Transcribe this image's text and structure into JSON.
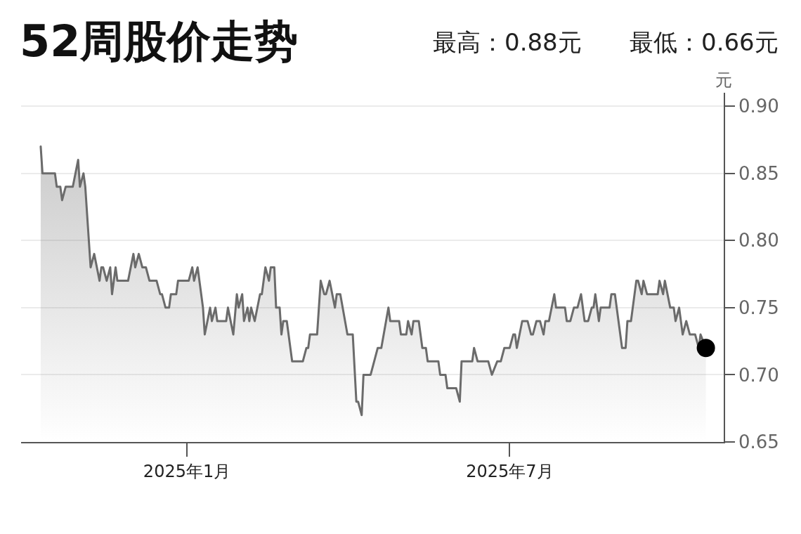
{
  "chart_data": {
    "type": "area",
    "title": "52周股价走势",
    "ylabel": "元",
    "annotations": [
      "最高：0.88元",
      "最低：0.66元"
    ],
    "x": [
      "2024-10-11",
      "2024-10-12",
      "2024-10-19",
      "2024-10-20",
      "2024-10-22",
      "2024-10-23",
      "2024-10-25",
      "2024-10-29",
      "2024-11-01",
      "2024-11-02",
      "2024-11-04",
      "2024-11-05",
      "2024-11-08",
      "2024-11-10",
      "2024-11-13",
      "2024-11-14",
      "2024-11-15",
      "2024-11-17",
      "2024-11-19",
      "2024-11-20",
      "2024-11-22",
      "2024-11-23",
      "2024-11-29",
      "2024-12-02",
      "2024-12-03",
      "2024-12-05",
      "2024-12-07",
      "2024-12-09",
      "2024-12-11",
      "2024-12-15",
      "2024-12-17",
      "2024-12-18",
      "2024-12-20",
      "2024-12-22",
      "2024-12-23",
      "2024-12-26",
      "2024-12-27",
      "2025-01-02",
      "2025-01-04",
      "2025-01-05",
      "2025-01-07",
      "2025-01-09",
      "2025-01-10",
      "2025-01-11",
      "2025-01-14",
      "2025-01-15",
      "2025-01-17",
      "2025-01-18",
      "2025-01-23",
      "2025-01-24",
      "2025-01-27",
      "2025-01-29",
      "2025-01-30",
      "2025-02-01",
      "2025-02-02",
      "2025-02-04",
      "2025-02-05",
      "2025-02-06",
      "2025-02-08",
      "2025-02-11",
      "2025-02-12",
      "2025-02-14",
      "2025-02-16",
      "2025-02-17",
      "2025-02-19",
      "2025-02-20",
      "2025-02-22",
      "2025-02-23",
      "2025-02-24",
      "2025-02-26",
      "2025-03-01",
      "2025-03-07",
      "2025-03-09",
      "2025-03-10",
      "2025-03-11",
      "2025-03-15",
      "2025-03-17",
      "2025-03-19",
      "2025-03-20",
      "2025-03-22",
      "2025-03-25",
      "2025-03-26",
      "2025-03-28",
      "2025-04-01",
      "2025-04-04",
      "2025-04-06",
      "2025-04-07",
      "2025-04-09",
      "2025-04-10",
      "2025-04-14",
      "2025-04-18",
      "2025-04-20",
      "2025-04-24",
      "2025-04-25",
      "2025-04-30",
      "2025-05-01",
      "2025-05-04",
      "2025-05-05",
      "2025-05-07",
      "2025-05-08",
      "2025-05-11",
      "2025-05-13",
      "2025-05-15",
      "2025-05-16",
      "2025-05-22",
      "2025-05-23",
      "2025-05-26",
      "2025-05-27",
      "2025-06-01",
      "2025-06-03",
      "2025-06-04",
      "2025-06-10",
      "2025-06-11",
      "2025-06-13",
      "2025-06-19",
      "2025-06-21",
      "2025-06-24",
      "2025-06-26",
      "2025-06-28",
      "2025-07-01",
      "2025-07-03",
      "2025-07-04",
      "2025-07-05",
      "2025-07-08",
      "2025-07-11",
      "2025-07-13",
      "2025-07-14",
      "2025-07-16",
      "2025-07-18",
      "2025-07-20",
      "2025-07-21",
      "2025-07-23",
      "2025-07-26",
      "2025-07-27",
      "2025-08-01",
      "2025-08-02",
      "2025-08-04",
      "2025-08-06",
      "2025-08-08",
      "2025-08-10",
      "2025-08-12",
      "2025-08-14",
      "2025-08-16",
      "2025-08-17",
      "2025-08-18",
      "2025-08-20",
      "2025-08-21",
      "2025-08-26",
      "2025-08-27",
      "2025-08-29",
      "2025-08-31",
      "2025-09-02",
      "2025-09-04",
      "2025-09-05",
      "2025-09-07",
      "2025-09-10",
      "2025-09-11",
      "2025-09-13",
      "2025-09-14",
      "2025-09-16",
      "2025-09-22",
      "2025-09-23",
      "2025-09-25",
      "2025-09-26",
      "2025-09-29",
      "2025-10-01",
      "2025-10-02",
      "2025-10-04",
      "2025-10-06",
      "2025-10-08",
      "2025-10-10",
      "2025-10-13",
      "2025-10-15",
      "2025-10-16",
      "2025-10-19"
    ],
    "series": [
      {
        "color": "#6b6b6b",
        "values": [
          0.87,
          0.85,
          0.85,
          0.84,
          0.84,
          0.83,
          0.84,
          0.84,
          0.86,
          0.84,
          0.85,
          0.84,
          0.78,
          0.79,
          0.77,
          0.78,
          0.78,
          0.77,
          0.78,
          0.76,
          0.78,
          0.77,
          0.77,
          0.79,
          0.78,
          0.79,
          0.78,
          0.78,
          0.77,
          0.77,
          0.76,
          0.76,
          0.75,
          0.75,
          0.76,
          0.76,
          0.77,
          0.77,
          0.78,
          0.77,
          0.78,
          0.76,
          0.75,
          0.73,
          0.75,
          0.74,
          0.75,
          0.74,
          0.74,
          0.75,
          0.73,
          0.76,
          0.75,
          0.76,
          0.74,
          0.75,
          0.74,
          0.75,
          0.74,
          0.76,
          0.76,
          0.78,
          0.77,
          0.78,
          0.78,
          0.75,
          0.75,
          0.73,
          0.74,
          0.74,
          0.71,
          0.71,
          0.72,
          0.72,
          0.73,
          0.73,
          0.77,
          0.76,
          0.76,
          0.77,
          0.75,
          0.76,
          0.76,
          0.73,
          0.73,
          0.68,
          0.68,
          0.67,
          0.7,
          0.7,
          0.72,
          0.72,
          0.75,
          0.74,
          0.74,
          0.73,
          0.73,
          0.74,
          0.73,
          0.74,
          0.74,
          0.72,
          0.72,
          0.71,
          0.71,
          0.7,
          0.7,
          0.69,
          0.69,
          0.68,
          0.71,
          0.71,
          0.72,
          0.71,
          0.71,
          0.7,
          0.71,
          0.71,
          0.72,
          0.72,
          0.73,
          0.73,
          0.72,
          0.74,
          0.74,
          0.73,
          0.73,
          0.74,
          0.74,
          0.73,
          0.74,
          0.74,
          0.76,
          0.75,
          0.75,
          0.74,
          0.74,
          0.75,
          0.75,
          0.76,
          0.74,
          0.74,
          0.75,
          0.75,
          0.76,
          0.74,
          0.75,
          0.75,
          0.76,
          0.76,
          0.74,
          0.72,
          0.72,
          0.74,
          0.74,
          0.77,
          0.77,
          0.76,
          0.77,
          0.76,
          0.76,
          0.77,
          0.76,
          0.77,
          0.75,
          0.75,
          0.74,
          0.75,
          0.73,
          0.74,
          0.73,
          0.73,
          0.72,
          0.73,
          0.72
        ]
      },
      {
        "type": "scatter",
        "color": "#000000",
        "marker": "circle",
        "x": [
          "2025-10-19"
        ],
        "values": [
          0.72
        ]
      }
    ],
    "xlim": [
      "2024-09-30",
      "2025-10-29"
    ],
    "xticks": [
      {
        "value": "2025-01-01",
        "label": "2025年1月"
      },
      {
        "value": "2025-07-01",
        "label": "2025年7月"
      }
    ],
    "ylim": [
      0.65,
      0.91
    ],
    "yticks": [
      {
        "value": 0.9,
        "label": "0.90"
      },
      0.85,
      {
        "value": 0.8,
        "label": "0.80"
      },
      0.75,
      {
        "value": 0.7,
        "label": "0.70"
      },
      0.65
    ],
    "grid": "y"
  }
}
